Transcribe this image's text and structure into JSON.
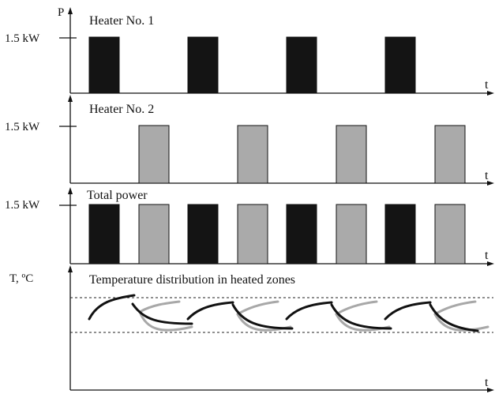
{
  "labels": {
    "power_axis": "P",
    "temp_axis": "T, ºC",
    "time_axis": "t",
    "power_level": "1.5 kW"
  },
  "panels": [
    {
      "title": "Heater No. 1"
    },
    {
      "title": "Heater No. 2"
    },
    {
      "title": "Total power"
    },
    {
      "title": "Temperature distribution in heated zones"
    }
  ],
  "colors": {
    "heater1": "#141414",
    "heater2": "#aaaaaa",
    "bar_outline": "#111111",
    "curve_heater1": "#111111",
    "curve_heater2": "#a8a8a8"
  }
}
